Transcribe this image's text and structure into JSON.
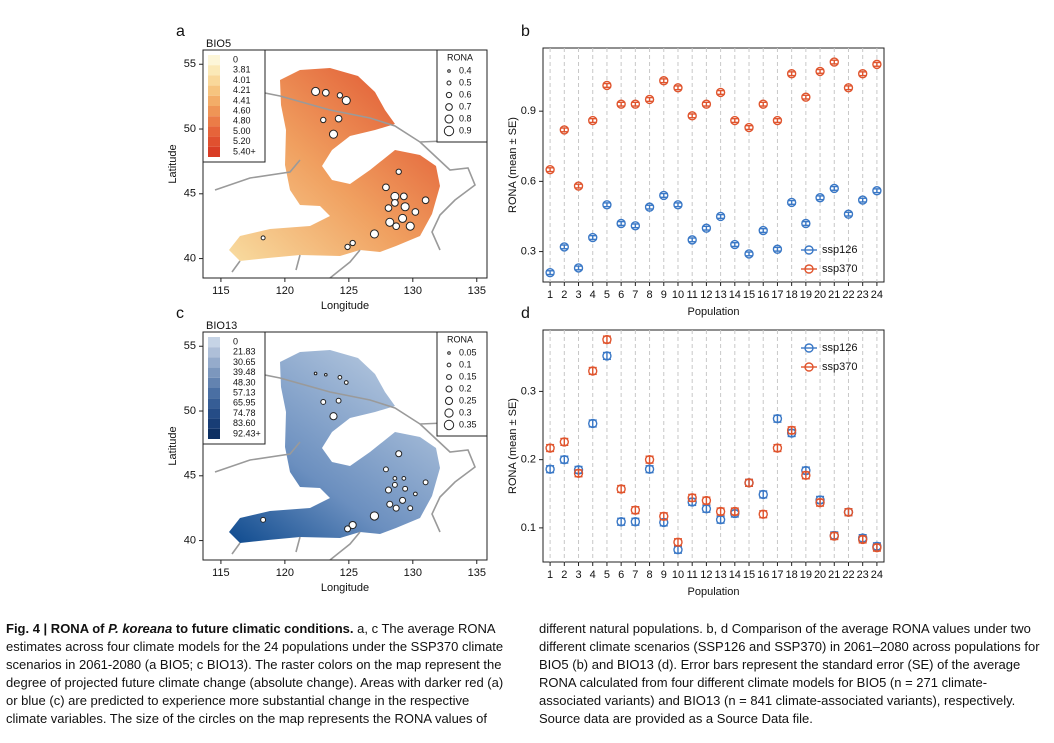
{
  "chart_data": [
    {
      "type": "map",
      "panel": "a",
      "title": "BIO5",
      "xlabel": "Longitude",
      "ylabel": "Latitude",
      "xlim": [
        113.6,
        135.8
      ],
      "ylim": [
        38.5,
        56.1
      ],
      "xticks": [
        115,
        120,
        125,
        130,
        135
      ],
      "yticks": [
        40,
        45,
        50,
        55
      ],
      "color_legend": {
        "labels": [
          "0",
          "3.81",
          "4.01",
          "4.21",
          "4.41",
          "4.60",
          "4.80",
          "5.00",
          "5.20",
          "5.40+"
        ],
        "colors": [
          "#fdf6d8",
          "#fbe9b7",
          "#f9d89a",
          "#f6c47f",
          "#f3ad68",
          "#ef9556",
          "#eb7c47",
          "#e6643a",
          "#e0502f",
          "#d93d25"
        ]
      },
      "size_legend": {
        "title": "RONA",
        "values": [
          0.4,
          0.5,
          0.6,
          0.7,
          0.8,
          0.9
        ]
      },
      "points": {
        "x": [
          122.4,
          123.2,
          124.3,
          124.8,
          123.0,
          124.2,
          123.8,
          128.9,
          127.9,
          128.6,
          129.3,
          128.6,
          129.4,
          128.1,
          130.2,
          131.0,
          129.2,
          129.8,
          128.7,
          128.2,
          127.0,
          125.3,
          124.9,
          118.3
        ],
        "y": [
          52.9,
          52.8,
          52.6,
          52.2,
          50.7,
          50.8,
          49.6,
          46.7,
          45.5,
          44.8,
          44.8,
          44.3,
          44.0,
          43.9,
          43.6,
          44.5,
          43.1,
          42.5,
          42.5,
          42.8,
          41.9,
          41.2,
          40.9,
          41.6
        ],
        "size": [
          0.8,
          0.7,
          0.6,
          0.8,
          0.6,
          0.7,
          0.8,
          0.6,
          0.7,
          0.8,
          0.7,
          0.7,
          0.8,
          0.7,
          0.7,
          0.7,
          0.8,
          0.8,
          0.7,
          0.8,
          0.8,
          0.6,
          0.6,
          0.5
        ]
      }
    },
    {
      "type": "errorbar",
      "panel": "b",
      "xlabel": "Population",
      "ylabel": "RONA (mean ± SE)",
      "categories": [
        "1",
        "2",
        "3",
        "4",
        "5",
        "6",
        "7",
        "8",
        "9",
        "10",
        "11",
        "12",
        "13",
        "14",
        "15",
        "16",
        "17",
        "18",
        "19",
        "20",
        "21",
        "22",
        "23",
        "24"
      ],
      "ylim": [
        0.17,
        1.17
      ],
      "yticks": [
        0.3,
        0.6,
        0.9
      ],
      "legend": "lower right",
      "series": [
        {
          "name": "ssp126",
          "color": "#3a78c6",
          "values": [
            0.21,
            0.32,
            0.23,
            0.36,
            0.5,
            0.42,
            0.41,
            0.49,
            0.54,
            0.5,
            0.35,
            0.4,
            0.45,
            0.33,
            0.29,
            0.39,
            0.31,
            0.51,
            0.42,
            0.53,
            0.57,
            0.46,
            0.52,
            0.56
          ],
          "errors": [
            0.008,
            0.008,
            0.008,
            0.008,
            0.008,
            0.008,
            0.008,
            0.008,
            0.008,
            0.008,
            0.008,
            0.008,
            0.008,
            0.008,
            0.008,
            0.008,
            0.008,
            0.008,
            0.008,
            0.008,
            0.008,
            0.008,
            0.008,
            0.008
          ]
        },
        {
          "name": "ssp370",
          "color": "#e0552e",
          "values": [
            0.65,
            0.82,
            0.58,
            0.86,
            1.01,
            0.93,
            0.93,
            0.95,
            1.03,
            1.0,
            0.88,
            0.93,
            0.98,
            0.86,
            0.83,
            0.93,
            0.86,
            1.06,
            0.96,
            1.07,
            1.11,
            1.0,
            1.06,
            1.1
          ],
          "errors": [
            0.008,
            0.008,
            0.008,
            0.008,
            0.008,
            0.008,
            0.008,
            0.008,
            0.008,
            0.008,
            0.008,
            0.008,
            0.008,
            0.008,
            0.008,
            0.008,
            0.008,
            0.008,
            0.008,
            0.008,
            0.008,
            0.008,
            0.008,
            0.008
          ]
        }
      ]
    },
    {
      "type": "map",
      "panel": "c",
      "title": "BIO13",
      "xlabel": "Longitude",
      "ylabel": "Latitude",
      "xlim": [
        113.6,
        135.8
      ],
      "ylim": [
        38.5,
        56.1
      ],
      "xticks": [
        115,
        120,
        125,
        130,
        135
      ],
      "yticks": [
        40,
        45,
        50,
        55
      ],
      "color_legend": {
        "labels": [
          "0",
          "21.83",
          "30.65",
          "39.48",
          "48.30",
          "57.13",
          "65.95",
          "74.78",
          "83.60",
          "92.43+"
        ],
        "colors": [
          "#c6d4e6",
          "#aebfd8",
          "#95abcb",
          "#7c97bd",
          "#6383b0",
          "#4a6fa3",
          "#365d95",
          "#254c86",
          "#183d75",
          "#0d2f62"
        ]
      },
      "size_legend": {
        "title": "RONA",
        "values": [
          0.05,
          0.1,
          0.15,
          0.2,
          0.25,
          0.3,
          0.35
        ]
      },
      "points": {
        "x": [
          122.4,
          123.2,
          124.3,
          124.8,
          123.0,
          124.2,
          123.8,
          128.9,
          127.9,
          128.6,
          129.3,
          128.6,
          129.4,
          128.1,
          130.2,
          131.0,
          129.2,
          129.8,
          128.7,
          128.2,
          127.0,
          125.3,
          124.9,
          118.3
        ],
        "y": [
          52.9,
          52.8,
          52.6,
          52.2,
          50.7,
          50.8,
          49.6,
          46.7,
          45.5,
          44.8,
          44.8,
          44.3,
          44.0,
          43.9,
          43.6,
          44.5,
          43.1,
          42.5,
          42.5,
          42.8,
          41.9,
          41.2,
          40.9,
          41.6
        ],
        "size": [
          0.05,
          0.05,
          0.1,
          0.1,
          0.15,
          0.15,
          0.25,
          0.2,
          0.15,
          0.1,
          0.1,
          0.15,
          0.15,
          0.2,
          0.1,
          0.15,
          0.2,
          0.15,
          0.2,
          0.2,
          0.3,
          0.25,
          0.2,
          0.15
        ]
      }
    },
    {
      "type": "errorbar",
      "panel": "d",
      "xlabel": "Population",
      "ylabel": "RONA (mean ± SE)",
      "categories": [
        "1",
        "2",
        "3",
        "4",
        "5",
        "6",
        "7",
        "8",
        "9",
        "10",
        "11",
        "12",
        "13",
        "14",
        "15",
        "16",
        "17",
        "18",
        "19",
        "20",
        "21",
        "22",
        "23",
        "24"
      ],
      "ylim": [
        0.05,
        0.39
      ],
      "yticks": [
        0.1,
        0.2,
        0.3
      ],
      "legend": "upper right",
      "series": [
        {
          "name": "ssp126",
          "color": "#3a78c6",
          "values": [
            0.186,
            0.2,
            0.185,
            0.253,
            0.352,
            0.109,
            0.109,
            0.186,
            0.108,
            0.068,
            0.138,
            0.128,
            0.112,
            0.121,
            0.166,
            0.149,
            0.26,
            0.239,
            0.184,
            0.141,
            0.089,
            0.123,
            0.085,
            0.073
          ],
          "errors": [
            0.005,
            0.005,
            0.005,
            0.005,
            0.005,
            0.005,
            0.005,
            0.005,
            0.005,
            0.005,
            0.005,
            0.005,
            0.005,
            0.005,
            0.005,
            0.005,
            0.005,
            0.005,
            0.005,
            0.005,
            0.005,
            0.005,
            0.005,
            0.005
          ]
        },
        {
          "name": "ssp370",
          "color": "#e0552e",
          "values": [
            0.217,
            0.226,
            0.18,
            0.33,
            0.376,
            0.157,
            0.126,
            0.2,
            0.117,
            0.079,
            0.144,
            0.14,
            0.124,
            0.124,
            0.166,
            0.12,
            0.217,
            0.243,
            0.177,
            0.137,
            0.088,
            0.123,
            0.083,
            0.071
          ],
          "errors": [
            0.005,
            0.005,
            0.005,
            0.005,
            0.005,
            0.005,
            0.005,
            0.005,
            0.005,
            0.005,
            0.005,
            0.005,
            0.005,
            0.005,
            0.005,
            0.005,
            0.005,
            0.005,
            0.005,
            0.005,
            0.005,
            0.005,
            0.005,
            0.005
          ]
        }
      ]
    }
  ],
  "caption": {
    "heading_1": "Fig. 4 | RONA of ",
    "heading_species": "P. koreana",
    "heading_2": " to future climatic conditions.",
    "body": " a, c The average RONA estimates across four climate models for the 24 populations under the SSP370 climate scenarios in 2061-2080 (a BIO5; c BIO13). The raster colors on the map represent the degree of projected future climate change (absolute change). Areas with darker red (a) or blue (c) are predicted to experience more substantial change in the respective climate variables. The size of the circles on the map represents the RONA values of different natural populations. b, d Comparison of the average RONA values under two different climate scenarios (SSP126 and SSP370) in 2061–2080 across populations for BIO5 (b) and BIO13 (d). Error bars represent the standard error (SE) of the average RONA calculated from four different climate models for BIO5 (n = 271 climate-associated variants) and BIO13 (n = 841 climate-associated variants), respectively. Source data are provided as a Source Data file."
  }
}
